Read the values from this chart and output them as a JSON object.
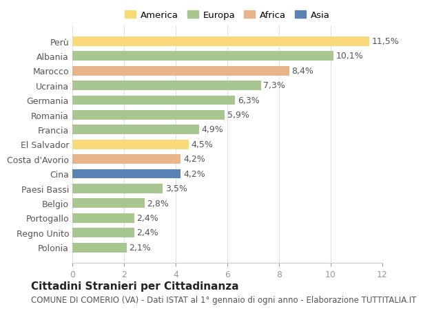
{
  "countries": [
    "Perù",
    "Albania",
    "Marocco",
    "Ucraina",
    "Germania",
    "Romania",
    "Francia",
    "El Salvador",
    "Costa d'Avorio",
    "Cina",
    "Paesi Bassi",
    "Belgio",
    "Portogallo",
    "Regno Unito",
    "Polonia"
  ],
  "values": [
    11.5,
    10.1,
    8.4,
    7.3,
    6.3,
    5.9,
    4.9,
    4.5,
    4.2,
    4.2,
    3.5,
    2.8,
    2.4,
    2.4,
    2.1
  ],
  "continents": [
    "America",
    "Europa",
    "Africa",
    "Europa",
    "Europa",
    "Europa",
    "Europa",
    "America",
    "Africa",
    "Asia",
    "Europa",
    "Europa",
    "Europa",
    "Europa",
    "Europa"
  ],
  "colors": {
    "America": "#F9D97A",
    "Europa": "#A8C68F",
    "Africa": "#E8B48A",
    "Asia": "#5B82B5"
  },
  "legend_order": [
    "America",
    "Europa",
    "Africa",
    "Asia"
  ],
  "title": "Cittadini Stranieri per Cittadinanza",
  "subtitle": "COMUNE DI COMERIO (VA) - Dati ISTAT al 1° gennaio di ogni anno - Elaborazione TUTTITALIA.IT",
  "xlim": [
    0,
    12
  ],
  "xticks": [
    0,
    2,
    4,
    6,
    8,
    10,
    12
  ],
  "background_color": "#ffffff",
  "bar_height": 0.65,
  "grid_color": "#e0e0e0",
  "label_fontsize": 9,
  "title_fontsize": 11,
  "subtitle_fontsize": 8.5
}
